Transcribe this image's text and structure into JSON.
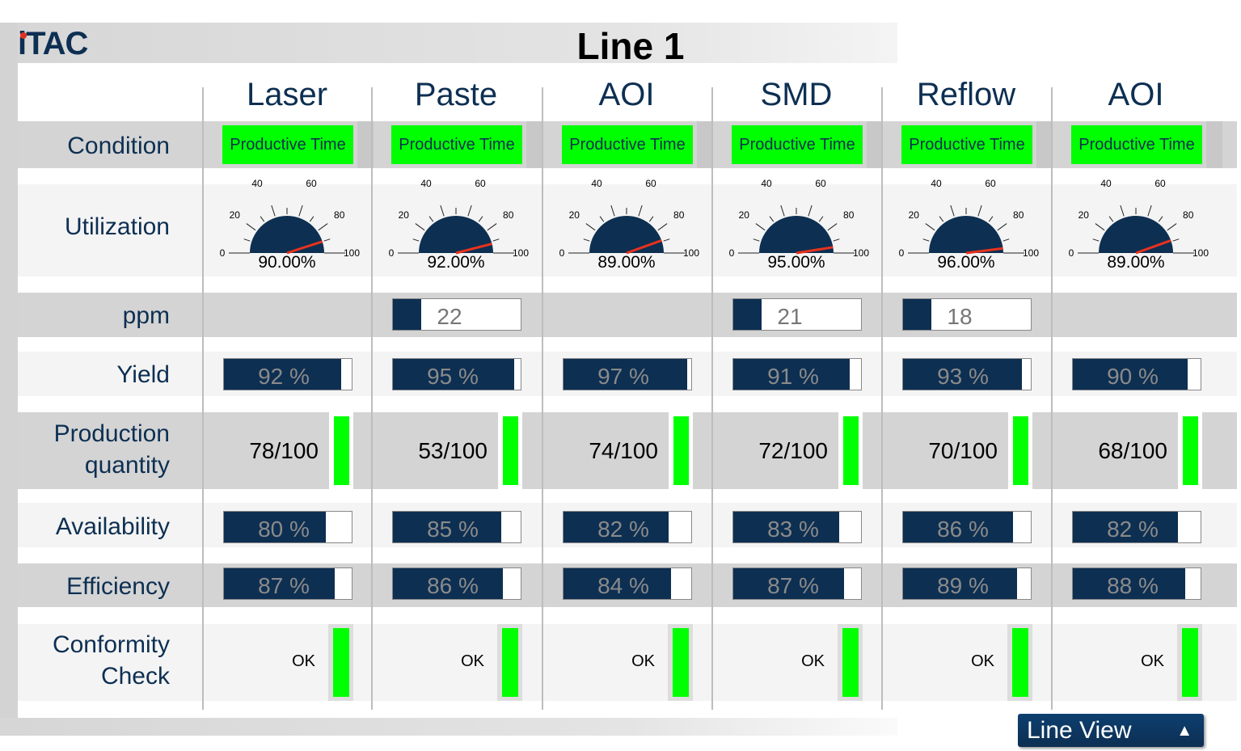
{
  "header": {
    "logo": "iTAC",
    "title": "Line 1"
  },
  "rows": {
    "condition": "Condition",
    "utilization": "Utilization",
    "ppm": "ppm",
    "yield": "Yield",
    "production": "Production quantity",
    "availability": "Availability",
    "efficiency": "Efficiency",
    "conformity": "Conformity Check"
  },
  "gauge_ticks": [
    "0",
    "20",
    "40",
    "60",
    "80",
    "100"
  ],
  "colors": {
    "navy": "#0d2f52",
    "green": "#00ff00",
    "needle": "#e8321e"
  },
  "stations": [
    {
      "name": "Laser",
      "condition": "Productive Time",
      "utilization": 90,
      "utilization_label": "90.00%",
      "ppm": null,
      "yield": 92,
      "yield_label": "92 %",
      "production": "78/100",
      "availability": 80,
      "availability_label": "80 %",
      "efficiency": 87,
      "efficiency_label": "87 %",
      "conformity": "OK"
    },
    {
      "name": "Paste",
      "condition": "Productive Time",
      "utilization": 92,
      "utilization_label": "92.00%",
      "ppm": "22",
      "yield": 95,
      "yield_label": "95 %",
      "production": "53/100",
      "availability": 85,
      "availability_label": "85 %",
      "efficiency": 86,
      "efficiency_label": "86 %",
      "conformity": "OK"
    },
    {
      "name": "AOI",
      "condition": "Productive Time",
      "utilization": 89,
      "utilization_label": "89.00%",
      "ppm": null,
      "yield": 97,
      "yield_label": "97 %",
      "production": "74/100",
      "availability": 82,
      "availability_label": "82 %",
      "efficiency": 84,
      "efficiency_label": "84 %",
      "conformity": "OK"
    },
    {
      "name": "SMD",
      "condition": "Productive Time",
      "utilization": 95,
      "utilization_label": "95.00%",
      "ppm": "21",
      "yield": 91,
      "yield_label": "91 %",
      "production": "72/100",
      "availability": 83,
      "availability_label": "83 %",
      "efficiency": 87,
      "efficiency_label": "87 %",
      "conformity": "OK"
    },
    {
      "name": "Reflow",
      "condition": "Productive Time",
      "utilization": 96,
      "utilization_label": "96.00%",
      "ppm": "18",
      "yield": 93,
      "yield_label": "93 %",
      "production": "70/100",
      "availability": 86,
      "availability_label": "86 %",
      "efficiency": 89,
      "efficiency_label": "89 %",
      "conformity": "OK"
    },
    {
      "name": "AOI",
      "condition": "Productive Time",
      "utilization": 89,
      "utilization_label": "89.00%",
      "ppm": null,
      "yield": 90,
      "yield_label": "90 %",
      "production": "68/100",
      "availability": 82,
      "availability_label": "82 %",
      "efficiency": 88,
      "efficiency_label": "88 %",
      "conformity": "OK"
    }
  ],
  "footer": {
    "line_view_label": "Line View",
    "line_view_icon": "triangle-up-icon"
  }
}
